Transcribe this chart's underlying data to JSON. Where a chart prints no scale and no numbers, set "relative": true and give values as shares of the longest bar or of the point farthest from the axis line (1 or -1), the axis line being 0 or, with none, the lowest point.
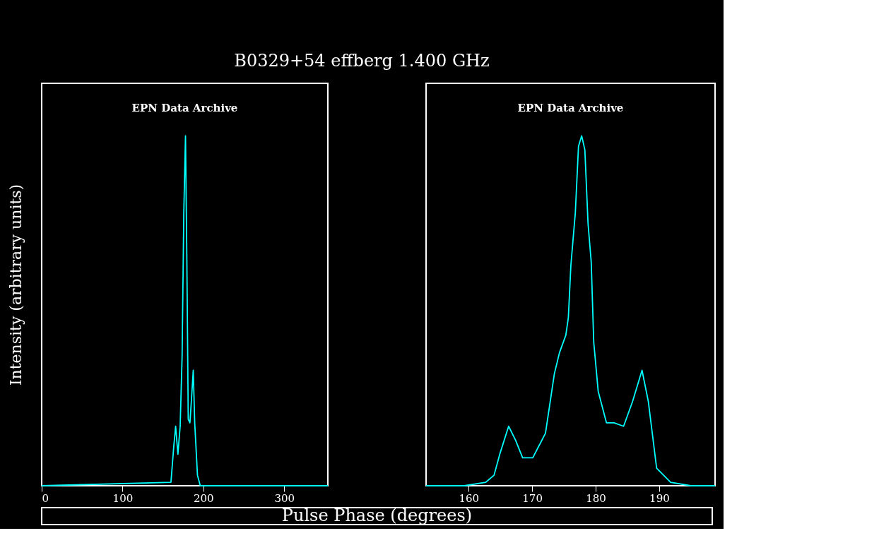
{
  "chart_data": [
    {
      "type": "line",
      "title": "B0329+54     effberg     1.400 GHz",
      "xlabel": "Pulse Phase (degrees)",
      "ylabel": "Intensity (arbitrary units)",
      "relative": true,
      "tick_labels": "x",
      "grid": false,
      "line_style": "solid",
      "annotations": [
        "EPN Data Archive"
      ],
      "xlim": [
        0,
        354
      ],
      "xticks": [
        0,
        100,
        200,
        300
      ],
      "x": [
        0,
        159.9,
        163.3,
        165.7,
        168.5,
        171.3,
        173.7,
        175.8,
        177.9,
        179.6,
        181.3,
        183.4,
        185.1,
        187.5,
        189.3,
        192.7,
        196.2,
        354
      ],
      "series": [
        {
          "color": "#00ffff",
          "values": [
            0,
            0.01,
            0.11,
            0.17,
            0.09,
            0.17,
            0.37,
            0.78,
            1.0,
            0.64,
            0.19,
            0.18,
            0.24,
            0.33,
            0.18,
            0.03,
            0,
            0
          ]
        }
      ]
    },
    {
      "type": "line",
      "relative": true,
      "tick_labels": "x",
      "grid": false,
      "line_style": "solid",
      "annotations": [
        "EPN Data Archive"
      ],
      "xlim": [
        153.3,
        198.8
      ],
      "xticks": [
        160,
        170,
        180,
        190
      ],
      "x": [
        153.3,
        159.3,
        162.7,
        164.0,
        164.9,
        166.3,
        167.4,
        168.5,
        170.1,
        172.1,
        173.5,
        174.3,
        175.3,
        175.7,
        176.1,
        176.8,
        177.3,
        177.8,
        178.3,
        178.8,
        179.3,
        179.7,
        180.4,
        181.7,
        182.9,
        184.4,
        185.8,
        187.3,
        188.3,
        189.6,
        191.8,
        195.0,
        198.8
      ],
      "series": [
        {
          "color": "#00ffff",
          "values": [
            0,
            0,
            0.01,
            0.03,
            0.09,
            0.17,
            0.13,
            0.08,
            0.08,
            0.15,
            0.32,
            0.38,
            0.43,
            0.48,
            0.63,
            0.78,
            0.97,
            1.0,
            0.96,
            0.75,
            0.64,
            0.41,
            0.27,
            0.18,
            0.18,
            0.17,
            0.24,
            0.33,
            0.24,
            0.05,
            0.01,
            0.0,
            0
          ]
        }
      ]
    }
  ]
}
